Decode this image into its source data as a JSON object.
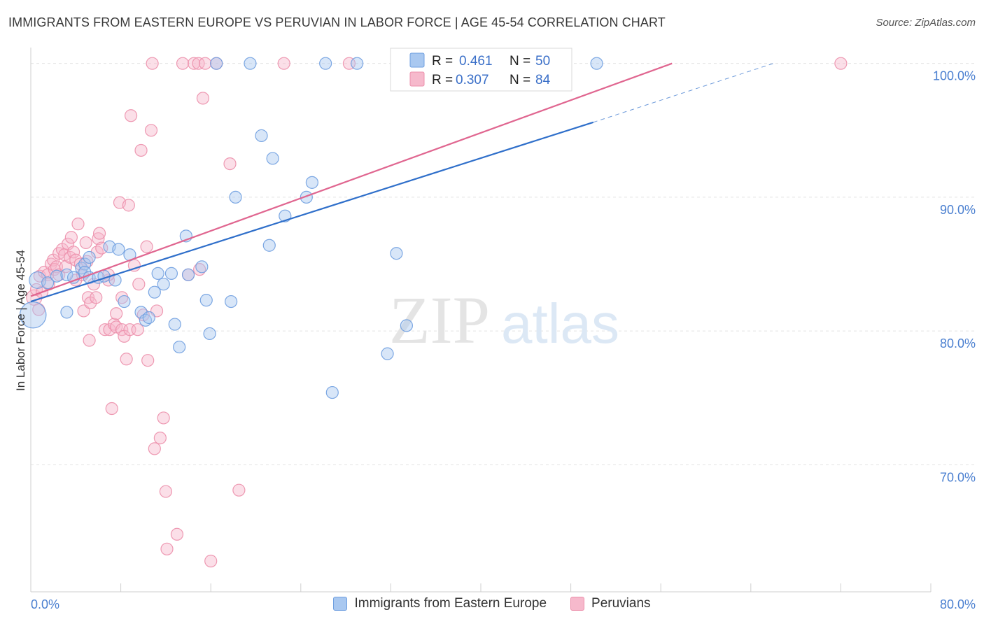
{
  "title": "IMMIGRANTS FROM EASTERN EUROPE VS PERUVIAN IN LABOR FORCE | AGE 45-54 CORRELATION CHART",
  "source": "Source: ZipAtlas.com",
  "watermark": {
    "zip": "ZIP",
    "atlas": "atlas"
  },
  "colors": {
    "blue_fill": "#a9c8f0",
    "blue_stroke": "#6f9fe0",
    "blue_line": "#2f6fca",
    "pink_fill": "#f6b9cc",
    "pink_stroke": "#ec8fab",
    "pink_line": "#e06690",
    "tick_color": "#4a7fd0",
    "grid": "#e3e3e3"
  },
  "legend": {
    "r_label": "R =",
    "n_label": "N =",
    "series": [
      {
        "r": "0.461",
        "n": "50"
      },
      {
        "r": "0.307",
        "n": "84"
      }
    ]
  },
  "bottom_legend": [
    {
      "label": "Immigrants from Eastern Europe"
    },
    {
      "label": "Peruvians"
    }
  ],
  "chart_data": {
    "type": "scatter",
    "title": "IMMIGRANTS FROM EASTERN EUROPE VS PERUVIAN IN LABOR FORCE | AGE 45-54 CORRELATION CHART",
    "xlabel": "",
    "ylabel": "In Labor Force | Age 45-54",
    "xlim": [
      0,
      80
    ],
    "ylim": [
      60.5,
      101.5
    ],
    "x_tick_labels": [
      {
        "value": 0,
        "label": "0.0%"
      },
      {
        "value": 80,
        "label": "80.0%"
      }
    ],
    "x_minor_ticks": [
      8,
      16,
      24,
      32,
      40,
      48,
      56,
      64,
      72,
      80
    ],
    "y_ticks": [
      {
        "value": 100,
        "label": "100.0%"
      },
      {
        "value": 90,
        "label": "90.0%"
      },
      {
        "value": 80,
        "label": "80.0%"
      },
      {
        "value": 70,
        "label": "70.0%"
      }
    ],
    "grid": true,
    "legend_position": "top-center",
    "series": [
      {
        "name": "Immigrants from Eastern Europe",
        "r": 0.461,
        "n": 50,
        "trend": {
          "x0": 0,
          "y0": 82.2,
          "x1": 50,
          "y1": 95.6,
          "dash_x1": 66,
          "dash_y1": 100
        },
        "points": [
          [
            0.2,
            81.2,
            2.2
          ],
          [
            0.6,
            83.8,
            1.4
          ],
          [
            1.5,
            83.6,
            1.0
          ],
          [
            2.3,
            84.1,
            1.0
          ],
          [
            3.2,
            84.2,
            1.0
          ],
          [
            3.2,
            81.4,
            1.0
          ],
          [
            3.8,
            84.0,
            1.0
          ],
          [
            4.5,
            84.7,
            1.0
          ],
          [
            4.8,
            85.0,
            1.0
          ],
          [
            4.8,
            84.4,
            1.0
          ],
          [
            5.2,
            84.0,
            1.0
          ],
          [
            5.2,
            85.5,
            1.0
          ],
          [
            6.0,
            84.0,
            1.0
          ],
          [
            6.5,
            84.1,
            1.0
          ],
          [
            7.0,
            86.3,
            1.0
          ],
          [
            7.5,
            83.8,
            1.0
          ],
          [
            7.8,
            86.1,
            1.0
          ],
          [
            8.3,
            82.2,
            1.0
          ],
          [
            8.8,
            85.7,
            1.0
          ],
          [
            9.8,
            81.4,
            1.0
          ],
          [
            10.2,
            80.8,
            1.0
          ],
          [
            10.5,
            81.0,
            1.0
          ],
          [
            11.0,
            82.9,
            1.0
          ],
          [
            11.3,
            84.3,
            1.0
          ],
          [
            11.8,
            83.5,
            1.0
          ],
          [
            12.5,
            84.3,
            1.0
          ],
          [
            12.8,
            80.5,
            1.0
          ],
          [
            13.2,
            78.8,
            1.0
          ],
          [
            13.8,
            87.1,
            1.0
          ],
          [
            14.0,
            84.2,
            1.0
          ],
          [
            15.2,
            84.8,
            1.0
          ],
          [
            15.6,
            82.3,
            1.0
          ],
          [
            15.9,
            79.8,
            1.0
          ],
          [
            16.5,
            100,
            1.0
          ],
          [
            17.8,
            82.2,
            1.0
          ],
          [
            18.2,
            90.0,
            1.0
          ],
          [
            19.5,
            100,
            1.0
          ],
          [
            20.5,
            94.6,
            1.0
          ],
          [
            21.2,
            86.4,
            1.0
          ],
          [
            21.5,
            92.9,
            1.0
          ],
          [
            22.6,
            88.6,
            1.0
          ],
          [
            24.5,
            90.0,
            1.0
          ],
          [
            25.0,
            91.1,
            1.0
          ],
          [
            26.2,
            100,
            1.0
          ],
          [
            26.8,
            75.4,
            1.0
          ],
          [
            29.0,
            100,
            1.0
          ],
          [
            31.7,
            78.3,
            1.0
          ],
          [
            32.5,
            85.8,
            1.0
          ],
          [
            33.4,
            80.4,
            1.0
          ],
          [
            50.3,
            100,
            1.0
          ]
        ]
      },
      {
        "name": "Peruvians",
        "r": 0.307,
        "n": 84,
        "trend": {
          "x0": 0,
          "y0": 82.6,
          "x1": 57,
          "y1": 100
        },
        "points": [
          [
            0.3,
            82.5,
            1.3
          ],
          [
            0.5,
            83.1,
            1.0
          ],
          [
            0.7,
            81.6,
            1.0
          ],
          [
            0.8,
            84.1,
            1.0
          ],
          [
            1.0,
            82.9,
            1.0
          ],
          [
            1.2,
            84.4,
            1.0
          ],
          [
            1.5,
            84.2,
            1.0
          ],
          [
            1.6,
            83.5,
            1.0
          ],
          [
            1.8,
            85.0,
            1.0
          ],
          [
            2.0,
            85.3,
            1.0
          ],
          [
            2.1,
            84.6,
            1.0
          ],
          [
            2.3,
            84.8,
            1.0
          ],
          [
            2.5,
            84.2,
            1.0
          ],
          [
            2.5,
            85.8,
            1.0
          ],
          [
            2.8,
            86.1,
            1.0
          ],
          [
            3.0,
            85.7,
            1.0
          ],
          [
            3.1,
            84.8,
            1.0
          ],
          [
            3.3,
            86.5,
            1.0
          ],
          [
            3.5,
            85.5,
            1.0
          ],
          [
            3.6,
            87.0,
            1.0
          ],
          [
            3.8,
            85.9,
            1.0
          ],
          [
            4.0,
            83.8,
            1.0
          ],
          [
            4.0,
            85.3,
            1.0
          ],
          [
            4.2,
            88.0,
            1.0
          ],
          [
            4.4,
            85.0,
            1.0
          ],
          [
            4.6,
            84.2,
            1.0
          ],
          [
            4.7,
            81.5,
            1.0
          ],
          [
            4.9,
            86.6,
            1.0
          ],
          [
            5.0,
            85.2,
            1.0
          ],
          [
            5.1,
            82.5,
            1.0
          ],
          [
            5.2,
            79.3,
            1.0
          ],
          [
            5.3,
            82.1,
            1.0
          ],
          [
            5.6,
            83.5,
            1.0
          ],
          [
            5.8,
            82.5,
            1.0
          ],
          [
            5.9,
            85.9,
            1.0
          ],
          [
            6.0,
            86.9,
            1.0
          ],
          [
            6.1,
            87.3,
            1.0
          ],
          [
            6.3,
            86.2,
            1.0
          ],
          [
            6.6,
            80.1,
            1.0
          ],
          [
            6.9,
            83.8,
            1.0
          ],
          [
            6.9,
            84.2,
            1.0
          ],
          [
            7.0,
            80.1,
            1.0
          ],
          [
            7.2,
            74.2,
            1.0
          ],
          [
            7.4,
            80.5,
            1.0
          ],
          [
            7.6,
            80.3,
            1.0
          ],
          [
            7.6,
            81.3,
            1.0
          ],
          [
            7.9,
            89.6,
            1.0
          ],
          [
            8.1,
            82.5,
            1.0
          ],
          [
            8.1,
            80.1,
            1.0
          ],
          [
            8.3,
            79.6,
            1.0
          ],
          [
            8.5,
            77.9,
            1.0
          ],
          [
            8.7,
            89.4,
            1.0
          ],
          [
            8.8,
            80.1,
            1.0
          ],
          [
            8.9,
            96.1,
            1.0
          ],
          [
            9.2,
            84.9,
            1.0
          ],
          [
            9.5,
            80.1,
            1.0
          ],
          [
            9.6,
            83.5,
            1.0
          ],
          [
            9.8,
            93.5,
            1.0
          ],
          [
            10.0,
            81.2,
            1.0
          ],
          [
            10.3,
            86.3,
            1.0
          ],
          [
            10.4,
            77.8,
            1.0
          ],
          [
            10.7,
            95.0,
            1.0
          ],
          [
            10.8,
            100,
            1.0
          ],
          [
            11.0,
            71.2,
            1.0
          ],
          [
            11.2,
            81.5,
            1.0
          ],
          [
            11.5,
            72.0,
            1.0
          ],
          [
            11.8,
            73.5,
            1.0
          ],
          [
            12.0,
            68.0,
            1.0
          ],
          [
            12.1,
            63.7,
            1.0
          ],
          [
            13.0,
            64.8,
            1.0
          ],
          [
            13.5,
            100,
            1.0
          ],
          [
            14.0,
            84.2,
            1.0
          ],
          [
            14.5,
            100,
            1.0
          ],
          [
            14.9,
            100,
            1.0
          ],
          [
            15.0,
            84.6,
            1.0
          ],
          [
            15.3,
            97.4,
            1.0
          ],
          [
            15.5,
            100,
            1.0
          ],
          [
            16.0,
            62.8,
            1.0
          ],
          [
            16.5,
            100,
            1.0
          ],
          [
            17.7,
            92.5,
            1.0
          ],
          [
            18.5,
            68.1,
            1.0
          ],
          [
            22.5,
            100,
            1.0
          ],
          [
            28.3,
            100,
            1.0
          ],
          [
            72.0,
            100,
            1.0
          ]
        ]
      }
    ]
  }
}
